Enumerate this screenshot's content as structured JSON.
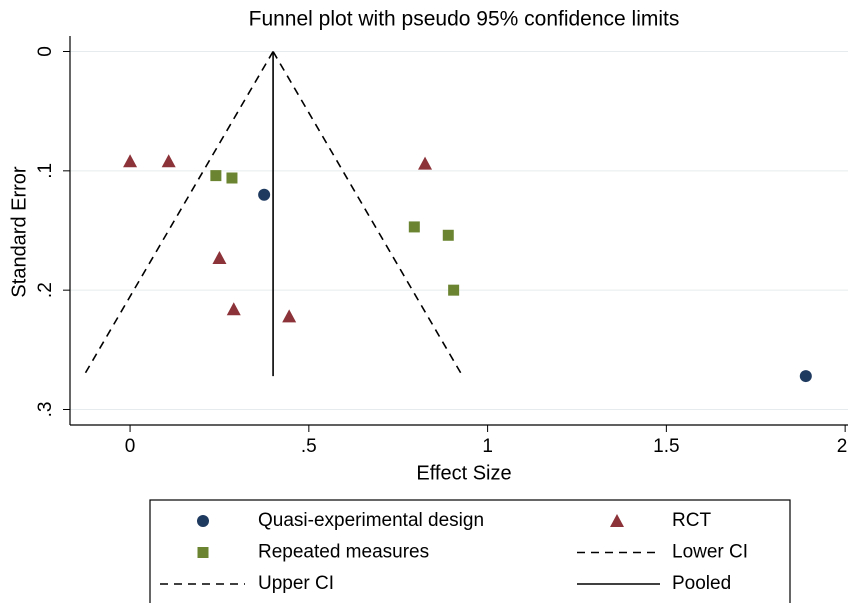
{
  "chart_data": {
    "type": "scatter",
    "title": "Funnel plot with pseudo 95% confidence limits",
    "xlabel": "Effect Size",
    "ylabel": "Standard Error",
    "xlim": [
      -0.168,
      2.008
    ],
    "ylim": [
      -0.013,
      0.313
    ],
    "y_inverted": true,
    "grid": true,
    "xticks": [
      0,
      {
        "value": 0.5,
        "label": ".5"
      },
      1,
      1.5,
      2
    ],
    "yticks": [
      0,
      {
        "value": 0.1,
        "label": ".1"
      },
      {
        "value": 0.2,
        "label": ".2"
      },
      {
        "value": 0.3,
        "label": ".3"
      }
    ],
    "legend": "bottom",
    "series": [
      {
        "name": "Quasi-experimental design",
        "color": "#1f3a5f",
        "marker": "circle",
        "x": [
          0.375,
          1.89
        ],
        "y": [
          0.12,
          0.272
        ]
      },
      {
        "name": "RCT",
        "color": "#8c3339",
        "marker": "triangle",
        "x": [
          0.0,
          0.108,
          0.825,
          0.25,
          0.29,
          0.445
        ],
        "y": [
          0.092,
          0.092,
          0.094,
          0.173,
          0.216,
          0.222
        ]
      },
      {
        "name": "Repeated measures",
        "color": "#6b8431",
        "marker": "square",
        "x": [
          0.24,
          0.285,
          0.795,
          0.89,
          0.905
        ],
        "y": [
          0.104,
          0.106,
          0.147,
          0.154,
          0.2
        ]
      },
      {
        "name": "Lower CI",
        "color": "#000000",
        "marker": "line",
        "dash": true,
        "x": [
          0.4,
          -0.13
        ],
        "y": [
          0,
          0.272
        ]
      },
      {
        "name": "Upper CI",
        "color": "#000000",
        "marker": "line",
        "dash": true,
        "x": [
          0.4,
          0.93
        ],
        "y": [
          0,
          0.272
        ]
      },
      {
        "name": "Pooled",
        "color": "#000000",
        "marker": "line",
        "dash": false,
        "x": [
          0.4,
          0.4
        ],
        "y": [
          0,
          0.272
        ]
      }
    ]
  }
}
